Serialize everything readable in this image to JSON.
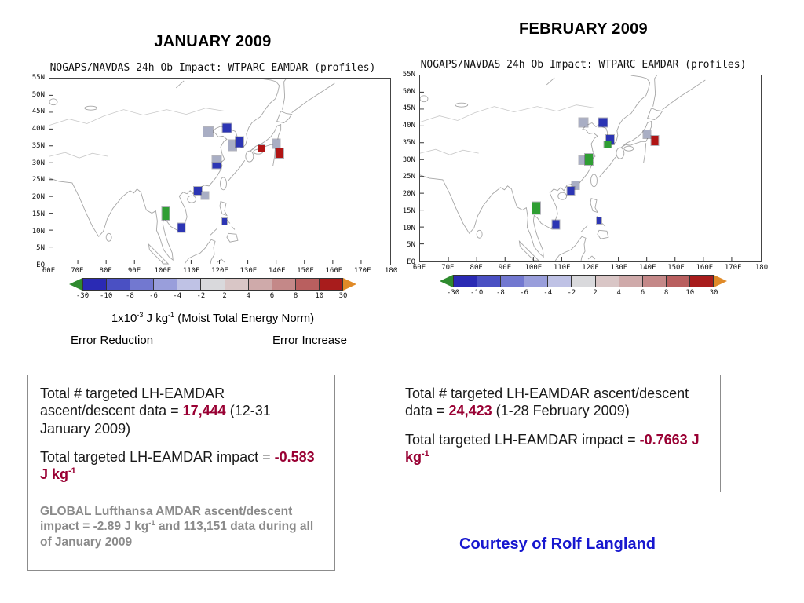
{
  "titles": {
    "january": "JANUARY 2009",
    "february": "FEBRUARY 2009"
  },
  "courtesy": "Courtesy of Rolf Langland",
  "colors": {
    "highlight": "#990033",
    "courtesy_blue": "#1717cf",
    "note_gray": "#8b8b8b"
  },
  "maps": {
    "title": "NOGAPS/NAVDAS 24h Ob Impact: WTPARC EAMDAR (profiles)",
    "lat_labels": [
      "55N",
      "50N",
      "45N",
      "40N",
      "35N",
      "30N",
      "25N",
      "20N",
      "15N",
      "10N",
      "5N",
      "EQ"
    ],
    "lon_labels": [
      "60E",
      "70E",
      "80E",
      "90E",
      "100E",
      "110E",
      "120E",
      "130E",
      "140E",
      "150E",
      "160E",
      "170E",
      "180"
    ],
    "marker_colors": {
      "blue": "#2c35b4",
      "gray": "#a9aec4",
      "red": "#b01414",
      "green": "#2f9e33",
      "bluegray": "#7e88c2"
    },
    "january_markers": [
      [
        46.6,
        28.5,
        12,
        12,
        "gray"
      ],
      [
        52.1,
        26.4,
        11,
        11,
        "blue"
      ],
      [
        53.7,
        36.0,
        10,
        13,
        "gray"
      ],
      [
        55.8,
        34.3,
        10,
        13,
        "blue"
      ],
      [
        62.2,
        37.7,
        8,
        8,
        "red"
      ],
      [
        66.5,
        35.2,
        9,
        11,
        "gray"
      ],
      [
        67.4,
        40.2,
        10,
        12,
        "red"
      ],
      [
        49.1,
        43.6,
        11,
        8,
        "gray"
      ],
      [
        49.1,
        46.8,
        11,
        7,
        "blue"
      ],
      [
        43.6,
        60.3,
        10,
        10,
        "blue"
      ],
      [
        45.6,
        62.8,
        9,
        9,
        "gray"
      ],
      [
        34.0,
        72.4,
        9,
        16,
        "green"
      ],
      [
        38.8,
        80.0,
        9,
        11,
        "blue"
      ],
      [
        51.4,
        76.6,
        6,
        8,
        "blue"
      ]
    ],
    "february_markers": [
      [
        47.9,
        25.5,
        11,
        11,
        "gray"
      ],
      [
        53.7,
        25.5,
        11,
        11,
        "blue"
      ],
      [
        55.8,
        34.7,
        10,
        12,
        "blue"
      ],
      [
        55.0,
        37.2,
        9,
        8,
        "green"
      ],
      [
        47.6,
        45.6,
        9,
        10,
        "gray"
      ],
      [
        49.6,
        45.2,
        10,
        14,
        "green"
      ],
      [
        66.5,
        31.8,
        9,
        10,
        "gray"
      ],
      [
        68.9,
        35.1,
        9,
        12,
        "red"
      ],
      [
        45.6,
        59.0,
        9,
        10,
        "gray"
      ],
      [
        44.3,
        61.9,
        9,
        10,
        "blue"
      ],
      [
        34.2,
        71.5,
        10,
        15,
        "green"
      ],
      [
        39.9,
        80.3,
        9,
        11,
        "blue"
      ],
      [
        52.5,
        78.2,
        6,
        8,
        "blue"
      ]
    ]
  },
  "colorbar": {
    "tick_labels": [
      "-30",
      "-10",
      "-8",
      "-6",
      "-4",
      "-2",
      "2",
      "4",
      "6",
      "8",
      "10",
      "30"
    ],
    "segment_colors": [
      "#2a2ab4",
      "#4a50c3",
      "#7278d0",
      "#999edb",
      "#bfc2e5",
      "#d9d9dc",
      "#d9c6c6",
      "#cfaaaa",
      "#c48888",
      "#b95f5f",
      "#a81c1c"
    ],
    "left_arrow_color": "#2e8b2e",
    "right_arrow_color": "#e08a28"
  },
  "legend": {
    "units_p1": "1x10",
    "units_sup1": "-3",
    "units_p2": " J kg",
    "units_sup2": "-1",
    "units_p3": "  (Moist Total Energy Norm)",
    "error_reduction": "Error Reduction",
    "error_increase": "Error Increase"
  },
  "boxes": {
    "left": {
      "line1_prefix": "Total # targeted LH-EAMDAR ascent/descent data = ",
      "line1_value": "17,444",
      "line1_suffix": " (12-31 January 2009)",
      "line2_prefix": "Total targeted LH-EAMDAR impact = ",
      "line2_value": "-0.583 J kg",
      "line2_sup": "-1",
      "note_p1": "GLOBAL Lufthansa AMDAR ascent/descent impact =  -2.89 J kg",
      "note_sup1": "-1",
      "note_p2": "  and 113,151 data during all of January 2009"
    },
    "right": {
      "line1_prefix": "Total # targeted LH-EAMDAR ascent/descent data = ",
      "line1_value": "24,423",
      "line1_suffix": " (1-28 February 2009)",
      "line2_prefix": "Total targeted LH-EAMDAR impact = ",
      "line2_value": "-0.7663 J kg",
      "line2_sup": "-1"
    }
  }
}
